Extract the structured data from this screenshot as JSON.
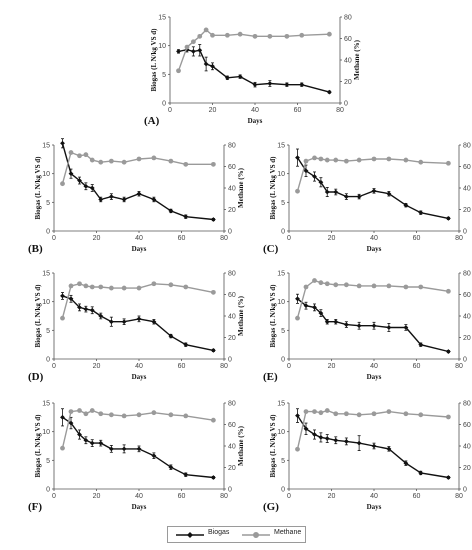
{
  "chart_data": [
    {
      "type": "line",
      "panel_label": "(A)",
      "xlabel": "Days",
      "ylabel": "Biogas (L N/kg VS d)",
      "y2label": "Methane (%)",
      "xlim": [
        0,
        80
      ],
      "xticks": [
        0,
        20,
        40,
        60,
        80
      ],
      "ylim": [
        0,
        15
      ],
      "yticks": [
        0,
        5,
        10,
        15
      ],
      "y2lim": [
        0,
        80
      ],
      "y2ticks": [
        0,
        20,
        40,
        60,
        80
      ],
      "series": [
        {
          "name": "Biogas",
          "axis": "left",
          "color": "#111111",
          "marker": "diamond",
          "x": [
            4,
            8,
            11,
            14,
            17,
            20,
            27,
            33,
            40,
            47,
            55,
            62,
            75
          ],
          "y": [
            9.0,
            9.3,
            9.0,
            9.2,
            6.8,
            6.4,
            4.4,
            4.6,
            3.2,
            3.4,
            3.2,
            3.2,
            1.9
          ],
          "err": [
            0.3,
            0.4,
            0.8,
            1.0,
            1.2,
            0.6,
            0.3,
            0.3,
            0.4,
            0.5,
            0.3,
            0.3,
            0.2
          ]
        },
        {
          "name": "Methane",
          "axis": "right",
          "color": "#9a9a9a",
          "marker": "circle",
          "x": [
            4,
            8,
            11,
            14,
            17,
            20,
            27,
            33,
            40,
            47,
            55,
            62,
            75
          ],
          "y": [
            30,
            52,
            57,
            62,
            68,
            63,
            63,
            64,
            62,
            62,
            62,
            63,
            64
          ],
          "err": []
        }
      ]
    },
    {
      "type": "line",
      "panel_label": "(B)",
      "xlabel": "Days",
      "ylabel": "Biogas (L N/kg VS d)",
      "y2label": "Methane (%)",
      "xlim": [
        0,
        80
      ],
      "xticks": [
        0,
        20,
        40,
        60,
        80
      ],
      "ylim": [
        0,
        15
      ],
      "yticks": [
        0,
        5,
        10,
        15
      ],
      "y2lim": [
        0,
        80
      ],
      "y2ticks": [
        0,
        20,
        40,
        60,
        80
      ],
      "series": [
        {
          "name": "Biogas",
          "axis": "left",
          "color": "#111111",
          "marker": "diamond",
          "x": [
            4,
            8,
            12,
            15,
            18,
            22,
            27,
            33,
            40,
            47,
            55,
            62,
            75
          ],
          "y": [
            15.3,
            10.0,
            8.8,
            7.8,
            7.5,
            5.5,
            6.0,
            5.5,
            6.5,
            5.5,
            3.5,
            2.5,
            2.0
          ],
          "err": [
            0.8,
            0.8,
            0.6,
            0.6,
            0.6,
            0.4,
            0.5,
            0.4,
            0.4,
            0.4,
            0.3,
            0.3,
            0.2
          ]
        },
        {
          "name": "Methane",
          "axis": "right",
          "color": "#9a9a9a",
          "marker": "circle",
          "x": [
            4,
            8,
            12,
            15,
            18,
            22,
            27,
            33,
            40,
            47,
            55,
            62,
            75
          ],
          "y": [
            44,
            73,
            70,
            71,
            66,
            64,
            65,
            64,
            67,
            68,
            65,
            62,
            62
          ],
          "err": []
        }
      ]
    },
    {
      "type": "line",
      "panel_label": "(C)",
      "xlabel": "Days",
      "ylabel": "Biogas (L N/kg VS d)",
      "y2label": "Methane (%)",
      "xlim": [
        0,
        80
      ],
      "xticks": [
        0,
        20,
        40,
        60,
        80
      ],
      "ylim": [
        0,
        15
      ],
      "yticks": [
        0,
        5,
        10,
        15
      ],
      "y2lim": [
        0,
        80
      ],
      "y2ticks": [
        0,
        20,
        40,
        60,
        80
      ],
      "series": [
        {
          "name": "Biogas",
          "axis": "left",
          "color": "#111111",
          "marker": "diamond",
          "x": [
            4,
            8,
            12,
            15,
            18,
            22,
            27,
            33,
            40,
            47,
            55,
            62,
            75
          ],
          "y": [
            12.8,
            10.5,
            9.5,
            8.5,
            6.8,
            6.8,
            6.0,
            6.0,
            7.0,
            6.5,
            4.5,
            3.2,
            2.2
          ],
          "err": [
            1.5,
            1.0,
            0.8,
            0.8,
            0.8,
            0.5,
            0.5,
            0.4,
            0.4,
            0.4,
            0.3,
            0.3,
            0.2
          ]
        },
        {
          "name": "Methane",
          "axis": "right",
          "color": "#9a9a9a",
          "marker": "circle",
          "x": [
            4,
            8,
            12,
            15,
            18,
            22,
            27,
            33,
            40,
            47,
            55,
            62,
            75
          ],
          "y": [
            37,
            65,
            68,
            67,
            66,
            66,
            65,
            66,
            67,
            67,
            66,
            64,
            63
          ],
          "err": []
        }
      ]
    },
    {
      "type": "line",
      "panel_label": "(D)",
      "xlabel": "Days",
      "ylabel": "Biogas (L N/kg VS d)",
      "y2label": "Methane (%)",
      "xlim": [
        0,
        80
      ],
      "xticks": [
        0,
        20,
        40,
        60,
        80
      ],
      "ylim": [
        0,
        15
      ],
      "yticks": [
        0,
        5,
        10,
        15
      ],
      "y2lim": [
        0,
        80
      ],
      "y2ticks": [
        0,
        20,
        40,
        60,
        80
      ],
      "series": [
        {
          "name": "Biogas",
          "axis": "left",
          "color": "#111111",
          "marker": "diamond",
          "x": [
            4,
            8,
            12,
            15,
            18,
            22,
            27,
            33,
            40,
            47,
            55,
            62,
            75
          ],
          "y": [
            11.0,
            10.5,
            9.0,
            8.7,
            8.5,
            7.5,
            6.5,
            6.5,
            7.0,
            6.5,
            4.0,
            2.5,
            1.5
          ],
          "err": [
            0.6,
            0.6,
            0.6,
            0.5,
            0.6,
            0.5,
            0.8,
            0.5,
            0.5,
            0.4,
            0.3,
            0.3,
            0.2
          ]
        },
        {
          "name": "Methane",
          "axis": "right",
          "color": "#9a9a9a",
          "marker": "circle",
          "x": [
            4,
            8,
            12,
            15,
            18,
            22,
            27,
            33,
            40,
            47,
            55,
            62,
            75
          ],
          "y": [
            38,
            68,
            70,
            68,
            67,
            67,
            66,
            66,
            66,
            70,
            69,
            67,
            62
          ],
          "err": []
        }
      ]
    },
    {
      "type": "line",
      "panel_label": "(E)",
      "xlabel": "Days",
      "ylabel": "Biogas (L N/kg VS d)",
      "y2label": "Methane (%)",
      "xlim": [
        0,
        80
      ],
      "xticks": [
        0,
        20,
        40,
        60,
        80
      ],
      "ylim": [
        0,
        15
      ],
      "yticks": [
        0,
        5,
        10,
        15
      ],
      "y2lim": [
        0,
        80
      ],
      "y2ticks": [
        0,
        20,
        40,
        60,
        80
      ],
      "series": [
        {
          "name": "Biogas",
          "axis": "left",
          "color": "#111111",
          "marker": "diamond",
          "x": [
            4,
            8,
            12,
            15,
            18,
            22,
            27,
            33,
            40,
            47,
            55,
            62,
            75
          ],
          "y": [
            10.5,
            9.3,
            9.0,
            8.0,
            6.5,
            6.5,
            6.0,
            5.8,
            5.8,
            5.5,
            5.5,
            2.5,
            1.3
          ],
          "err": [
            0.8,
            0.6,
            0.6,
            0.6,
            0.4,
            0.4,
            0.5,
            0.6,
            0.6,
            0.7,
            0.5,
            0.3,
            0.2
          ]
        },
        {
          "name": "Methane",
          "axis": "right",
          "color": "#9a9a9a",
          "marker": "circle",
          "x": [
            4,
            8,
            12,
            15,
            18,
            22,
            27,
            33,
            40,
            47,
            55,
            62,
            75
          ],
          "y": [
            38,
            67,
            73,
            71,
            70,
            69,
            69,
            68,
            68,
            68,
            67,
            67,
            63
          ],
          "err": []
        }
      ]
    },
    {
      "type": "line",
      "panel_label": "(F)",
      "xlabel": "Days",
      "ylabel": "Biogas (L N/kg VS d)",
      "y2label": "Methane (%)",
      "xlim": [
        0,
        80
      ],
      "xticks": [
        0,
        20,
        40,
        60,
        80
      ],
      "ylim": [
        0,
        15
      ],
      "yticks": [
        0,
        5,
        10,
        15
      ],
      "y2lim": [
        0,
        80
      ],
      "y2ticks": [
        0,
        20,
        40,
        60,
        80
      ],
      "series": [
        {
          "name": "Biogas",
          "axis": "left",
          "color": "#111111",
          "marker": "diamond",
          "x": [
            4,
            8,
            12,
            15,
            18,
            22,
            27,
            33,
            40,
            47,
            55,
            62,
            75
          ],
          "y": [
            12.5,
            11.5,
            9.5,
            8.5,
            8.0,
            8.0,
            7.0,
            7.0,
            7.0,
            5.8,
            3.8,
            2.5,
            2.0
          ],
          "err": [
            1.5,
            1.0,
            0.8,
            0.6,
            0.6,
            0.5,
            0.6,
            0.7,
            0.5,
            0.5,
            0.4,
            0.3,
            0.2
          ]
        },
        {
          "name": "Methane",
          "axis": "right",
          "color": "#9a9a9a",
          "marker": "circle",
          "x": [
            4,
            8,
            12,
            15,
            18,
            22,
            27,
            33,
            40,
            47,
            55,
            62,
            75
          ],
          "y": [
            38,
            72,
            73,
            70,
            73,
            70,
            69,
            68,
            69,
            71,
            69,
            68,
            64
          ],
          "err": []
        }
      ]
    },
    {
      "type": "line",
      "panel_label": "(G)",
      "xlabel": "Days",
      "ylabel": "Biogas (L N/kg VS d)",
      "y2label": "Methane (%)",
      "xlim": [
        0,
        80
      ],
      "xticks": [
        0,
        20,
        40,
        60,
        80
      ],
      "ylim": [
        0,
        15
      ],
      "yticks": [
        0,
        5,
        10,
        15
      ],
      "y2lim": [
        0,
        80
      ],
      "y2ticks": [
        0,
        20,
        40,
        60,
        80
      ],
      "series": [
        {
          "name": "Biogas",
          "axis": "left",
          "color": "#111111",
          "marker": "diamond",
          "x": [
            4,
            8,
            12,
            15,
            18,
            22,
            27,
            33,
            40,
            47,
            55,
            62,
            75
          ],
          "y": [
            12.8,
            10.5,
            9.5,
            9.0,
            8.8,
            8.5,
            8.3,
            8.0,
            7.5,
            7.0,
            4.5,
            2.8,
            2.0
          ],
          "err": [
            1.2,
            1.0,
            0.8,
            0.8,
            0.7,
            0.6,
            0.6,
            1.3,
            0.5,
            0.4,
            0.4,
            0.3,
            0.2
          ]
        },
        {
          "name": "Methane",
          "axis": "right",
          "color": "#9a9a9a",
          "marker": "circle",
          "x": [
            4,
            8,
            12,
            15,
            18,
            22,
            27,
            33,
            40,
            47,
            55,
            62,
            75
          ],
          "y": [
            37,
            72,
            72,
            71,
            73,
            70,
            70,
            69,
            70,
            72,
            70,
            69,
            67
          ],
          "err": []
        }
      ]
    }
  ],
  "legend": {
    "biogas_label": "Biogas",
    "methane_label": "Methane"
  }
}
